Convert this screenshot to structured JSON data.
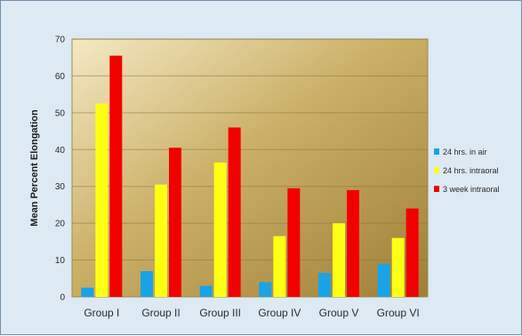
{
  "chart_data": {
    "type": "bar",
    "title": "",
    "xlabel": "",
    "ylabel": "Mean Percent Elongation",
    "ylim": [
      0,
      70
    ],
    "yticks": [
      0,
      10,
      20,
      30,
      40,
      50,
      60,
      70
    ],
    "categories": [
      "Group I",
      "Group II",
      "Group III",
      "Group IV",
      "Group V",
      "Group VI"
    ],
    "series": [
      {
        "name": "24 hrs. in air",
        "color": "#1aa3e6",
        "values": [
          2.5,
          7.0,
          3.0,
          4.0,
          6.5,
          9.0
        ]
      },
      {
        "name": "24 hrs. intraoral",
        "color": "#ffff14",
        "values": [
          52.5,
          30.5,
          36.5,
          16.5,
          20.0,
          16.0
        ]
      },
      {
        "name": "3 week intraoral",
        "color": "#f20000",
        "values": [
          65.5,
          40.5,
          46.0,
          29.5,
          29.0,
          24.0
        ]
      }
    ],
    "grid": true,
    "legend": "right"
  }
}
